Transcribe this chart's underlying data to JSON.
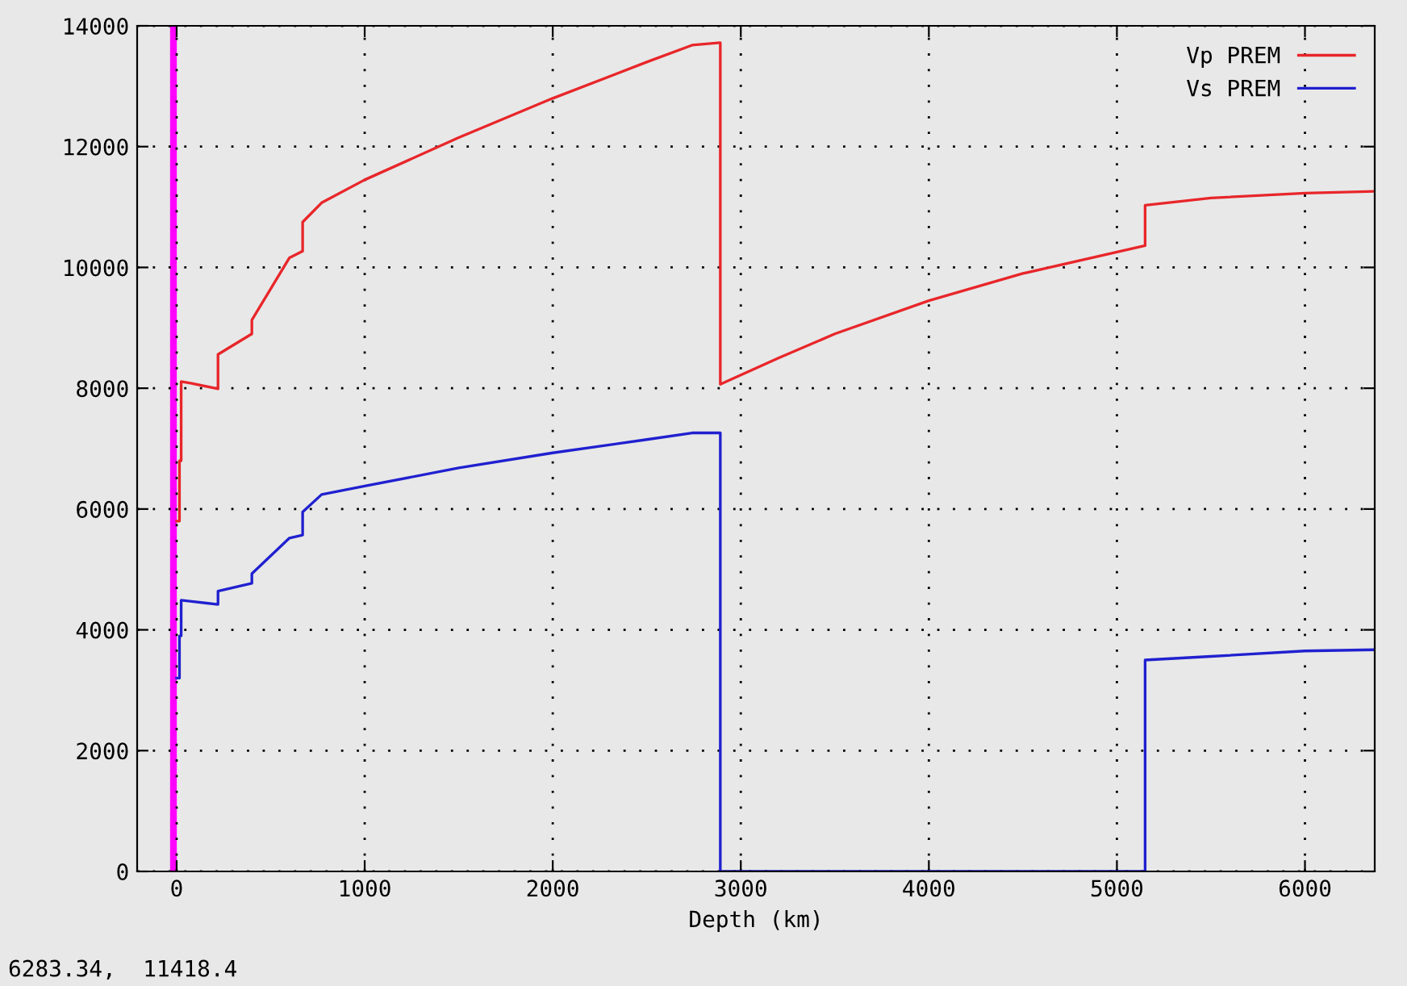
{
  "chart_data": {
    "type": "line",
    "xlabel": "Depth (km)",
    "xlim": [
      -210,
      6371
    ],
    "ylim": [
      0,
      14000
    ],
    "xticks": [
      0,
      1000,
      2000,
      3000,
      4000,
      5000,
      6000
    ],
    "yticks": [
      0,
      2000,
      4000,
      6000,
      8000,
      10000,
      12000,
      14000
    ],
    "grid": true,
    "legend": "top right",
    "line_style": "solid",
    "ref_lines": [
      {
        "axis": "x",
        "value": -17,
        "color": "#ff00ff"
      }
    ],
    "annotations": [
      "6283.34,  11418.4"
    ],
    "series": [
      {
        "name": "Vp PREM",
        "color": "#e8262a",
        "x": [
          0,
          15,
          15,
          24,
          24,
          80,
          220,
          220,
          400,
          400,
          600,
          670,
          670,
          771,
          1000,
          1500,
          2000,
          2500,
          2741,
          2891,
          2891,
          3200,
          3500,
          4000,
          4500,
          5150,
          5150,
          5500,
          6000,
          6371
        ],
        "values": [
          5800,
          5800,
          6800,
          6800,
          8110,
          8080,
          7990,
          8560,
          8900,
          9130,
          10160,
          10270,
          10750,
          11070,
          11450,
          12150,
          12800,
          13400,
          13680,
          13720,
          8065,
          8500,
          8900,
          9450,
          9900,
          10360,
          11030,
          11150,
          11230,
          11260
        ]
      },
      {
        "name": "Vs PREM",
        "color": "#2020d0",
        "x": [
          0,
          15,
          15,
          24,
          24,
          80,
          220,
          220,
          400,
          400,
          600,
          670,
          670,
          771,
          1000,
          1500,
          2000,
          2500,
          2741,
          2891,
          2891,
          5150,
          5150,
          5500,
          6000,
          6371
        ],
        "values": [
          3200,
          3200,
          3900,
          3900,
          4490,
          4470,
          4420,
          4640,
          4770,
          4930,
          5520,
          5570,
          5950,
          6240,
          6380,
          6680,
          6930,
          7150,
          7260,
          7260,
          0,
          0,
          3500,
          3560,
          3650,
          3670
        ]
      }
    ]
  }
}
